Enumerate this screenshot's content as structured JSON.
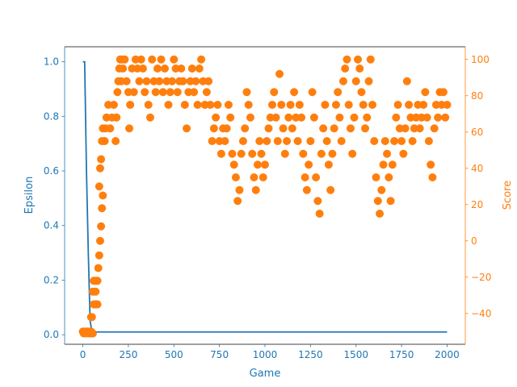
{
  "chart_data": {
    "type": "line+scatter",
    "title": "",
    "xlabel": "Game",
    "ylabel_left": "Epsilon",
    "ylabel_right": "Score",
    "xlim": [
      -100,
      2100
    ],
    "ylim_left": [
      -0.035,
      1.055
    ],
    "ylim_right": [
      -57,
      107
    ],
    "x_ticks": [
      0,
      250,
      500,
      750,
      1000,
      1250,
      1500,
      1750,
      2000
    ],
    "y_ticks_left": [
      0.0,
      0.2,
      0.4,
      0.6,
      0.8,
      1.0
    ],
    "y_ticks_right": [
      -40,
      -20,
      0,
      20,
      40,
      60,
      80,
      100
    ],
    "colors": {
      "epsilon": "#1f77b4",
      "score": "#ff7f0e"
    },
    "series": [
      {
        "axis": "left",
        "kind": "line",
        "x": [
          0,
          10,
          20,
          30,
          40,
          50,
          60,
          2000
        ],
        "values": [
          1.0,
          1.0,
          0.6,
          0.3,
          0.05,
          0.01,
          0.01,
          0.01
        ]
      },
      {
        "axis": "right",
        "kind": "scatter",
        "points": [
          [
            0,
            -50
          ],
          [
            5,
            -51
          ],
          [
            10,
            -50
          ],
          [
            15,
            -51
          ],
          [
            20,
            -50
          ],
          [
            25,
            -50
          ],
          [
            30,
            -51
          ],
          [
            35,
            -50
          ],
          [
            40,
            -51
          ],
          [
            45,
            -50
          ],
          [
            50,
            -51
          ],
          [
            55,
            -51
          ],
          [
            45,
            -42
          ],
          [
            50,
            -42
          ],
          [
            55,
            -28
          ],
          [
            60,
            -35
          ],
          [
            65,
            -35
          ],
          [
            70,
            -28
          ],
          [
            75,
            -35
          ],
          [
            80,
            -22
          ],
          [
            85,
            -15
          ],
          [
            90,
            -8
          ],
          [
            95,
            0
          ],
          [
            100,
            8
          ],
          [
            105,
            18
          ],
          [
            110,
            25
          ],
          [
            60,
            -22
          ],
          [
            65,
            -22
          ],
          [
            70,
            -35
          ],
          [
            75,
            -22
          ],
          [
            80,
            -35
          ],
          [
            90,
            30
          ],
          [
            95,
            40
          ],
          [
            100,
            45
          ],
          [
            105,
            55
          ],
          [
            110,
            62
          ],
          [
            120,
            55
          ],
          [
            125,
            62
          ],
          [
            130,
            68
          ],
          [
            140,
            75
          ],
          [
            150,
            62
          ],
          [
            160,
            68
          ],
          [
            170,
            75
          ],
          [
            180,
            55
          ],
          [
            185,
            68
          ],
          [
            190,
            82
          ],
          [
            195,
            88
          ],
          [
            200,
            95
          ],
          [
            205,
            100
          ],
          [
            210,
            88
          ],
          [
            215,
            100
          ],
          [
            220,
            95
          ],
          [
            230,
            100
          ],
          [
            240,
            88
          ],
          [
            250,
            82
          ],
          [
            255,
            62
          ],
          [
            260,
            75
          ],
          [
            270,
            95
          ],
          [
            280,
            82
          ],
          [
            290,
            100
          ],
          [
            300,
            95
          ],
          [
            310,
            88
          ],
          [
            320,
            100
          ],
          [
            330,
            95
          ],
          [
            340,
            82
          ],
          [
            350,
            88
          ],
          [
            360,
            75
          ],
          [
            370,
            68
          ],
          [
            380,
            100
          ],
          [
            390,
            88
          ],
          [
            400,
            82
          ],
          [
            410,
            95
          ],
          [
            420,
            88
          ],
          [
            430,
            100
          ],
          [
            440,
            82
          ],
          [
            450,
            95
          ],
          [
            460,
            88
          ],
          [
            470,
            75
          ],
          [
            480,
            82
          ],
          [
            490,
            88
          ],
          [
            500,
            100
          ],
          [
            510,
            95
          ],
          [
            520,
            82
          ],
          [
            530,
            88
          ],
          [
            540,
            95
          ],
          [
            550,
            88
          ],
          [
            560,
            75
          ],
          [
            570,
            62
          ],
          [
            580,
            82
          ],
          [
            590,
            88
          ],
          [
            600,
            95
          ],
          [
            610,
            82
          ],
          [
            620,
            88
          ],
          [
            630,
            75
          ],
          [
            640,
            95
          ],
          [
            650,
            100
          ],
          [
            660,
            88
          ],
          [
            670,
            75
          ],
          [
            680,
            82
          ],
          [
            690,
            88
          ],
          [
            700,
            75
          ],
          [
            710,
            55
          ],
          [
            720,
            62
          ],
          [
            730,
            68
          ],
          [
            740,
            75
          ],
          [
            750,
            55
          ],
          [
            760,
            48
          ],
          [
            770,
            62
          ],
          [
            780,
            55
          ],
          [
            790,
            62
          ],
          [
            800,
            75
          ],
          [
            810,
            68
          ],
          [
            820,
            48
          ],
          [
            830,
            42
          ],
          [
            840,
            35
          ],
          [
            850,
            22
          ],
          [
            860,
            28
          ],
          [
            870,
            48
          ],
          [
            880,
            55
          ],
          [
            890,
            62
          ],
          [
            900,
            82
          ],
          [
            910,
            75
          ],
          [
            920,
            68
          ],
          [
            930,
            48
          ],
          [
            940,
            35
          ],
          [
            950,
            28
          ],
          [
            960,
            42
          ],
          [
            970,
            55
          ],
          [
            980,
            48
          ],
          [
            990,
            35
          ],
          [
            1000,
            42
          ],
          [
            1010,
            55
          ],
          [
            1020,
            62
          ],
          [
            1030,
            68
          ],
          [
            1040,
            75
          ],
          [
            1050,
            82
          ],
          [
            1060,
            68
          ],
          [
            1070,
            55
          ],
          [
            1080,
            92
          ],
          [
            1090,
            75
          ],
          [
            1100,
            62
          ],
          [
            1110,
            48
          ],
          [
            1120,
            55
          ],
          [
            1130,
            68
          ],
          [
            1140,
            75
          ],
          [
            1150,
            62
          ],
          [
            1160,
            82
          ],
          [
            1170,
            68
          ],
          [
            1180,
            55
          ],
          [
            1190,
            75
          ],
          [
            1200,
            68
          ],
          [
            1210,
            48
          ],
          [
            1220,
            35
          ],
          [
            1230,
            28
          ],
          [
            1240,
            42
          ],
          [
            1250,
            55
          ],
          [
            1260,
            82
          ],
          [
            1270,
            68
          ],
          [
            1280,
            35
          ],
          [
            1290,
            22
          ],
          [
            1300,
            15
          ],
          [
            1310,
            48
          ],
          [
            1320,
            62
          ],
          [
            1330,
            75
          ],
          [
            1340,
            55
          ],
          [
            1350,
            42
          ],
          [
            1360,
            28
          ],
          [
            1370,
            48
          ],
          [
            1380,
            62
          ],
          [
            1390,
            75
          ],
          [
            1400,
            82
          ],
          [
            1410,
            68
          ],
          [
            1420,
            55
          ],
          [
            1430,
            88
          ],
          [
            1440,
            95
          ],
          [
            1450,
            100
          ],
          [
            1460,
            75
          ],
          [
            1470,
            62
          ],
          [
            1480,
            48
          ],
          [
            1490,
            68
          ],
          [
            1500,
            88
          ],
          [
            1510,
            100
          ],
          [
            1520,
            95
          ],
          [
            1530,
            82
          ],
          [
            1540,
            75
          ],
          [
            1550,
            62
          ],
          [
            1560,
            68
          ],
          [
            1570,
            88
          ],
          [
            1580,
            100
          ],
          [
            1590,
            75
          ],
          [
            1600,
            55
          ],
          [
            1610,
            35
          ],
          [
            1620,
            22
          ],
          [
            1630,
            15
          ],
          [
            1640,
            28
          ],
          [
            1650,
            42
          ],
          [
            1660,
            55
          ],
          [
            1670,
            48
          ],
          [
            1680,
            35
          ],
          [
            1690,
            22
          ],
          [
            1700,
            42
          ],
          [
            1710,
            55
          ],
          [
            1720,
            68
          ],
          [
            1730,
            75
          ],
          [
            1740,
            62
          ],
          [
            1750,
            55
          ],
          [
            1760,
            48
          ],
          [
            1770,
            62
          ],
          [
            1780,
            88
          ],
          [
            1790,
            75
          ],
          [
            1800,
            68
          ],
          [
            1810,
            55
          ],
          [
            1820,
            62
          ],
          [
            1830,
            68
          ],
          [
            1840,
            75
          ],
          [
            1850,
            62
          ],
          [
            1860,
            68
          ],
          [
            1870,
            75
          ],
          [
            1880,
            82
          ],
          [
            1890,
            68
          ],
          [
            1900,
            55
          ],
          [
            1910,
            42
          ],
          [
            1920,
            35
          ],
          [
            1930,
            62
          ],
          [
            1940,
            75
          ],
          [
            1950,
            68
          ],
          [
            1960,
            82
          ],
          [
            1970,
            75
          ],
          [
            1980,
            82
          ],
          [
            1990,
            68
          ],
          [
            2000,
            75
          ]
        ]
      }
    ]
  }
}
